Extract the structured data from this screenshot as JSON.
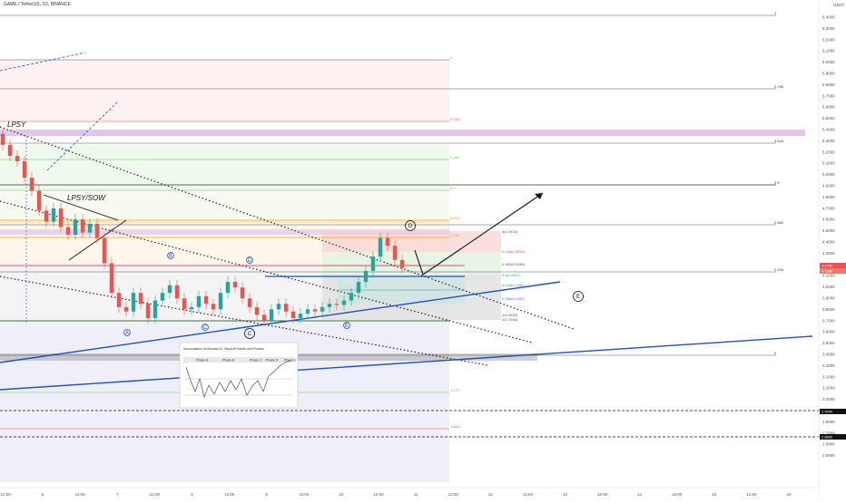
{
  "header": {
    "symbol_text": "GAME / TetherUS, 1D, BINANCE"
  },
  "price_axis": {
    "currency": "USDT",
    "ticks": [
      "6.4000",
      "6.3000",
      "6.2000",
      "6.1000",
      "6.0000",
      "5.9000",
      "5.8000",
      "5.7000",
      "5.6000",
      "5.5000",
      "5.4000",
      "5.3000",
      "5.2000",
      "5.1000",
      "5.0000",
      "4.9000",
      "4.8000",
      "4.7000",
      "4.6000",
      "4.5000",
      "4.4000",
      "4.3000",
      "4.2000",
      "4.1000",
      "4.0000",
      "3.9000",
      "3.8000",
      "3.7000",
      "3.6000",
      "3.5000",
      "3.4000",
      "3.3000",
      "3.2000",
      "3.1000",
      "3.0000",
      "2.9000",
      "2.8000",
      "2.7000",
      "2.6000",
      "2.5000"
    ],
    "current_price_tag": "4.1740",
    "current_price_tag_2": "4.1580",
    "black_tag_1": "2.9000",
    "black_tag_2": "2.6800"
  },
  "time_axis": {
    "ticks": [
      "12:00",
      "6",
      "12:00",
      "7",
      "12:00",
      "8",
      "12:00",
      "9",
      "12:00",
      "10",
      "12:00",
      "11",
      "12:00",
      "12",
      "12:00",
      "13",
      "12:00",
      "14",
      "12:00",
      "15",
      "12:00",
      "16"
    ]
  },
  "chart_data": {
    "type": "candlestick",
    "title": "GAME / TetherUS, 1D, BINANCE",
    "ylim": [
      2.5,
      6.5
    ],
    "candles_close": [
      5.3,
      5.2,
      5.15,
      5.0,
      4.88,
      4.7,
      4.6,
      4.72,
      4.55,
      4.48,
      4.62,
      4.5,
      4.58,
      4.45,
      4.22,
      3.95,
      3.82,
      3.78,
      3.95,
      3.85,
      3.72,
      3.88,
      3.95,
      4.02,
      3.9,
      3.8,
      3.82,
      3.92,
      3.85,
      3.8,
      3.95,
      4.05,
      4.0,
      3.9,
      3.82,
      3.75,
      3.7,
      3.8,
      3.85,
      3.78,
      3.72,
      3.76,
      3.8,
      3.78,
      3.82,
      3.85,
      3.84,
      3.88,
      3.95,
      4.05,
      4.15,
      4.28,
      4.45,
      4.38,
      4.25,
      4.18
    ]
  },
  "fib_right": {
    "levels": [
      "1",
      "0.786",
      "0.618",
      "0.5",
      "0.382",
      "0.236",
      "0"
    ]
  },
  "fib_left": {
    "levels": [
      "0",
      "0.236",
      "0.382",
      "0.5",
      "0.618",
      "0.786",
      "1.272",
      "1.414"
    ]
  },
  "range_labels": [
    "0(4.4914)",
    "0.236(4.3990)",
    "0.382(4.3348)",
    "0.5(4.2847)",
    "0.618(4.2281)",
    "0.786(4.1481)",
    "1(4.0520)",
    "1(3.7046)"
  ],
  "annotations": {
    "lpsy": "LPSY",
    "lpsy_sow": "LPSY/SOW",
    "wave_a": "A",
    "wave_b": "B",
    "wave_c_small": "C",
    "wave_d_small": "D",
    "wave_c_circle": "C",
    "wave_d_circle": "D",
    "wave_e_small": "E",
    "wave_e_circle": "E"
  },
  "inset": {
    "title": "Accumulation Schematic #1: Wyckoff Events and Phases",
    "phases": [
      "Phase A",
      "Phase B",
      "Phase C",
      "Phase D",
      "Phase E"
    ]
  },
  "colors": {
    "up": "#26a69a",
    "down": "#ef5350",
    "trend_blue": "#1e50c8",
    "fib_orange": "#f59a23"
  }
}
